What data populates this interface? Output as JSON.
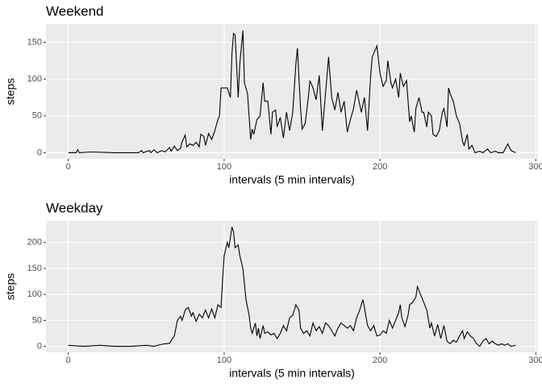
{
  "chart_data": [
    {
      "type": "line",
      "title": "Weekend",
      "x_label": "intervals (5 min intervals)",
      "y_label": "steps",
      "color": "#000000",
      "x": [
        0,
        5,
        6,
        7,
        14,
        30,
        45,
        47,
        48,
        52,
        53,
        55,
        57,
        60,
        62,
        65,
        66,
        68,
        70,
        72,
        73,
        75,
        76,
        78,
        80,
        82,
        84,
        85,
        87,
        88,
        90,
        92,
        94,
        96,
        97,
        98,
        102,
        104,
        105,
        106,
        107,
        109,
        110,
        112,
        113,
        115,
        117,
        118,
        119,
        121,
        123,
        125,
        126,
        128,
        130,
        131,
        133,
        134,
        136,
        138,
        140,
        142,
        144,
        146,
        147,
        149,
        150,
        152,
        154,
        155,
        157,
        159,
        161,
        163,
        165,
        167,
        169,
        171,
        173,
        175,
        177,
        179,
        181,
        183,
        185,
        188,
        190,
        192,
        194,
        195,
        197,
        198,
        200,
        202,
        204,
        205,
        207,
        208,
        210,
        212,
        213,
        215,
        217,
        219,
        220,
        222,
        223,
        225,
        227,
        228,
        230,
        231,
        233,
        234,
        236,
        238,
        240,
        241,
        243,
        244,
        245,
        247,
        249,
        251,
        253,
        254,
        256,
        257,
        259,
        261,
        264,
        266,
        269,
        271,
        274,
        276,
        279,
        282,
        284,
        287
      ],
      "values": [
        0,
        0,
        4,
        0,
        1,
        0,
        0,
        3,
        0,
        3,
        0,
        4,
        0,
        3,
        1,
        7,
        2,
        9,
        3,
        6,
        15,
        24,
        8,
        12,
        10,
        14,
        8,
        25,
        22,
        10,
        26,
        18,
        30,
        45,
        50,
        88,
        88,
        75,
        135,
        162,
        160,
        75,
        120,
        166,
        95,
        80,
        18,
        32,
        25,
        45,
        50,
        95,
        70,
        70,
        25,
        55,
        58,
        35,
        48,
        20,
        55,
        30,
        55,
        120,
        142,
        60,
        32,
        40,
        75,
        98,
        88,
        72,
        105,
        30,
        80,
        130,
        75,
        58,
        82,
        55,
        70,
        28,
        45,
        60,
        85,
        55,
        75,
        30,
        105,
        130,
        140,
        145,
        108,
        90,
        98,
        125,
        95,
        88,
        100,
        75,
        108,
        90,
        98,
        42,
        50,
        28,
        60,
        75,
        55,
        55,
        35,
        55,
        50,
        25,
        22,
        30,
        55,
        60,
        35,
        88,
        80,
        70,
        50,
        40,
        15,
        10,
        25,
        5,
        10,
        0,
        2,
        0,
        5,
        0,
        2,
        0,
        0,
        12,
        3,
        0
      ],
      "xlim": [
        -14.35,
        301.35
      ],
      "ylim": [
        -8.3,
        174.6
      ],
      "xticks": [
        0,
        100,
        200,
        300
      ],
      "yticks": [
        0,
        50,
        100,
        150
      ],
      "grid": true
    },
    {
      "type": "line",
      "title": "Weekday",
      "x_label": "intervals (5 min intervals)",
      "y_label": "steps",
      "color": "#000000",
      "x": [
        0,
        10,
        20,
        30,
        40,
        50,
        55,
        60,
        65,
        68,
        70,
        72,
        73,
        75,
        77,
        79,
        80,
        82,
        84,
        86,
        88,
        90,
        92,
        94,
        96,
        98,
        99,
        100,
        102,
        103,
        105,
        106,
        107,
        109,
        110,
        112,
        114,
        116,
        117,
        118,
        120,
        121,
        122,
        123,
        125,
        126,
        128,
        130,
        132,
        134,
        136,
        138,
        140,
        142,
        144,
        146,
        148,
        149,
        151,
        153,
        155,
        157,
        159,
        161,
        163,
        165,
        167,
        169,
        171,
        173,
        175,
        177,
        179,
        181,
        183,
        185,
        187,
        189,
        190,
        192,
        194,
        196,
        198,
        200,
        202,
        204,
        206,
        208,
        210,
        212,
        213,
        214,
        216,
        218,
        219,
        221,
        223,
        224,
        226,
        228,
        230,
        232,
        233,
        235,
        237,
        239,
        241,
        243,
        245,
        247,
        249,
        251,
        253,
        254,
        256,
        258,
        260,
        262,
        264,
        266,
        268,
        270,
        272,
        274,
        276,
        278,
        280,
        282,
        284,
        287
      ],
      "values": [
        2,
        0,
        2,
        0,
        0,
        2,
        0,
        4,
        6,
        20,
        50,
        58,
        50,
        70,
        75,
        58,
        65,
        48,
        62,
        55,
        70,
        55,
        72,
        55,
        80,
        75,
        130,
        175,
        200,
        190,
        230,
        220,
        190,
        195,
        175,
        150,
        90,
        60,
        35,
        25,
        45,
        20,
        35,
        15,
        40,
        25,
        28,
        22,
        25,
        15,
        25,
        40,
        30,
        55,
        60,
        80,
        70,
        35,
        25,
        30,
        20,
        45,
        30,
        38,
        25,
        45,
        40,
        30,
        20,
        35,
        45,
        40,
        35,
        40,
        30,
        55,
        70,
        90,
        75,
        40,
        30,
        40,
        20,
        22,
        30,
        25,
        50,
        35,
        50,
        65,
        80,
        55,
        38,
        60,
        80,
        85,
        95,
        115,
        100,
        85,
        70,
        35,
        45,
        20,
        42,
        15,
        40,
        10,
        5,
        12,
        8,
        20,
        30,
        15,
        28,
        20,
        15,
        5,
        0,
        10,
        15,
        5,
        10,
        5,
        2,
        5,
        2,
        5,
        0,
        2
      ],
      "xlim": [
        -14.35,
        301.35
      ],
      "ylim": [
        -11.5,
        241.5
      ],
      "xticks": [
        0,
        100,
        200,
        300
      ],
      "yticks": [
        0,
        50,
        100,
        150,
        200
      ],
      "grid": true
    }
  ]
}
